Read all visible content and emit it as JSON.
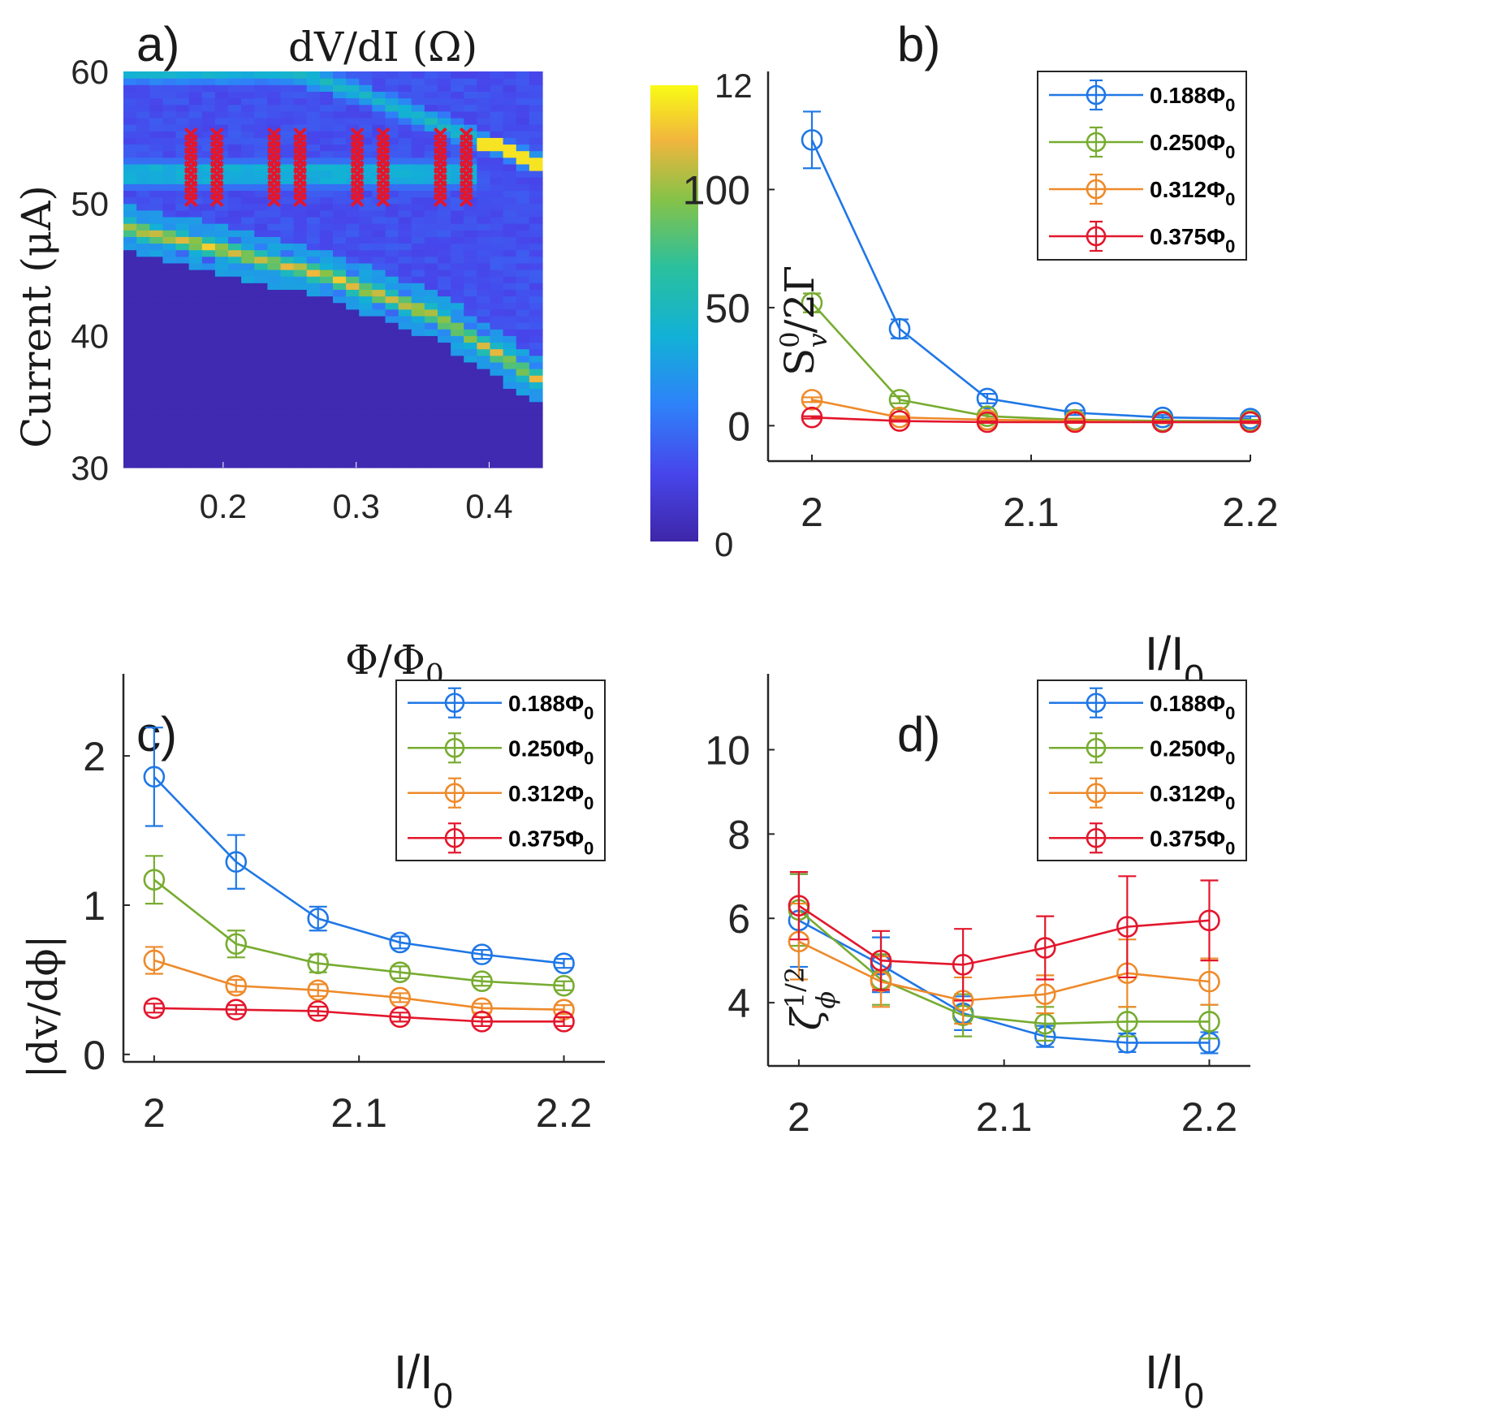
{
  "figure": {
    "panels": [
      "a)",
      "b)",
      "c)",
      "d)"
    ]
  },
  "colors": {
    "blue": "#1f77e6",
    "green": "#77ac30",
    "orange": "#ee8a2a",
    "red": "#e3162c",
    "cross": "#e3162c"
  },
  "chart_data": [
    {
      "id": "a",
      "type": "heatmap",
      "title": "dV/dI (Ω)",
      "xlabel": "Φ/Φ",
      "xlabel_sub": "0",
      "ylabel": "Current (μA)",
      "xlim": [
        0.125,
        0.44
      ],
      "ylim": [
        30,
        60
      ],
      "xticks": [
        "0.2",
        "0.3",
        "0.4"
      ],
      "xtick_values": [
        0.2,
        0.3,
        0.4
      ],
      "yticks": [
        "30",
        "40",
        "50",
        "60"
      ],
      "ytick_values": [
        30,
        40,
        50,
        60
      ],
      "colorbar": {
        "min": 0,
        "max": 12,
        "ticks": [
          "0",
          "12"
        ]
      },
      "features": [
        {
          "name": "lower branch",
          "points": [
            [
              0.125,
              48.2
            ],
            [
              0.2,
              46.5
            ],
            [
              0.28,
              44.5
            ],
            [
              0.36,
              41.5
            ],
            [
              0.44,
              36.5
            ]
          ],
          "peak": 10
        },
        {
          "name": "upper branch",
          "points": [
            [
              0.125,
              60
            ],
            [
              0.2,
              60
            ],
            [
              0.25,
              60
            ],
            [
              0.3,
              58.5
            ],
            [
              0.35,
              56.5
            ],
            [
              0.4,
              54.5
            ],
            [
              0.44,
              53
            ]
          ],
          "peak": 6
        },
        {
          "name": "horizontal band",
          "points": [
            [
              0.125,
              52.2
            ],
            [
              0.44,
              52.2
            ]
          ],
          "peak": 5
        }
      ],
      "markers": {
        "symbol": "x",
        "x": [
          0.1758,
          0.1953,
          0.2383,
          0.2578,
          0.3008,
          0.3203,
          0.3633,
          0.3828
        ],
        "y": [
          50.25,
          50.75,
          51.25,
          51.75,
          52.25,
          52.75,
          53.25,
          53.75,
          54.25,
          54.75,
          55.25
        ]
      }
    },
    {
      "id": "b",
      "type": "line",
      "xlabel": "I/I",
      "xlabel_sub": "0",
      "ylabel": "S",
      "ylabel_sup": "0",
      "ylabel_sub": "v",
      "ylabel_rest": "/2Γ",
      "xlim": [
        1.98,
        2.2
      ],
      "ylim": [
        -15,
        150
      ],
      "xticks": [
        "2",
        "2.1",
        "2.2"
      ],
      "xtick_values": [
        2,
        2.1,
        2.2
      ],
      "yticks": [
        "0",
        "50",
        "100"
      ],
      "ytick_values": [
        0,
        50,
        100
      ],
      "x": [
        2.0,
        2.04,
        2.08,
        2.12,
        2.16,
        2.2
      ],
      "series": [
        {
          "name": "0.188Φ",
          "sub": "0",
          "color": "blue",
          "values": [
            121,
            41,
            11.5,
            5.5,
            3.5,
            3
          ],
          "errors": [
            12,
            4,
            2,
            1,
            1,
            1
          ]
        },
        {
          "name": "0.250Φ",
          "sub": "0",
          "color": "green",
          "values": [
            52,
            11,
            4,
            2.5,
            2,
            2
          ],
          "errors": [
            4,
            1.5,
            1,
            0.5,
            0.5,
            0.5
          ]
        },
        {
          "name": "0.312Φ",
          "sub": "0",
          "color": "orange",
          "values": [
            11,
            3.5,
            2.5,
            2,
            1.5,
            1.5
          ],
          "errors": [
            1,
            0.5,
            0.5,
            0.5,
            0.5,
            0.5
          ]
        },
        {
          "name": "0.375Φ",
          "sub": "0",
          "color": "red",
          "values": [
            3.5,
            2,
            1.5,
            1.5,
            1.5,
            1.5
          ],
          "errors": [
            0.5,
            0.3,
            0.3,
            0.3,
            0.3,
            0.3
          ]
        }
      ]
    },
    {
      "id": "c",
      "type": "line",
      "xlabel": "I/I",
      "xlabel_sub": "0",
      "ylabel": "|dv/dϕ|",
      "xlim": [
        1.985,
        2.22
      ],
      "ylim": [
        -0.05,
        2.55
      ],
      "xticks": [
        "2",
        "2.1",
        "2.2"
      ],
      "xtick_values": [
        2,
        2.1,
        2.2
      ],
      "yticks": [
        "0",
        "1",
        "2"
      ],
      "ytick_values": [
        0,
        1,
        2
      ],
      "x": [
        2.0,
        2.04,
        2.08,
        2.12,
        2.16,
        2.2
      ],
      "series": [
        {
          "name": "0.188Φ",
          "sub": "0",
          "color": "blue",
          "values": [
            1.86,
            1.29,
            0.91,
            0.75,
            0.67,
            0.61
          ],
          "errors": [
            0.33,
            0.18,
            0.08,
            0.04,
            0.03,
            0.03
          ]
        },
        {
          "name": "0.250Φ",
          "sub": "0",
          "color": "green",
          "values": [
            1.17,
            0.74,
            0.61,
            0.55,
            0.49,
            0.46
          ],
          "errors": [
            0.16,
            0.09,
            0.06,
            0.04,
            0.03,
            0.03
          ]
        },
        {
          "name": "0.312Φ",
          "sub": "0",
          "color": "orange",
          "values": [
            0.63,
            0.46,
            0.43,
            0.38,
            0.31,
            0.3
          ],
          "errors": [
            0.09,
            0.04,
            0.04,
            0.03,
            0.03,
            0.03
          ]
        },
        {
          "name": "0.375Φ",
          "sub": "0",
          "color": "red",
          "values": [
            0.31,
            0.3,
            0.29,
            0.25,
            0.22,
            0.22
          ],
          "errors": [
            0.03,
            0.03,
            0.03,
            0.03,
            0.03,
            0.03
          ]
        }
      ]
    },
    {
      "id": "d",
      "type": "line",
      "xlabel": "I/I",
      "xlabel_sub": "0",
      "ylabel": "ζ",
      "ylabel_sup": "1/2",
      "ylabel_sub": "ϕ",
      "xlim": [
        1.985,
        2.22
      ],
      "ylim": [
        2.5,
        11.8
      ],
      "xticks": [
        "2",
        "2.1",
        "2.2"
      ],
      "xtick_values": [
        2,
        2.1,
        2.2
      ],
      "yticks": [
        "4",
        "6",
        "8",
        "10"
      ],
      "ytick_values": [
        4,
        6,
        8,
        10
      ],
      "x": [
        2.0,
        2.04,
        2.08,
        2.12,
        2.16,
        2.2
      ],
      "series": [
        {
          "name": "0.188Φ",
          "sub": "0",
          "color": "blue",
          "values": [
            5.95,
            4.9,
            3.75,
            3.2,
            3.05,
            3.05
          ],
          "errors": [
            1.1,
            0.65,
            0.4,
            0.25,
            0.22,
            0.25
          ]
        },
        {
          "name": "0.250Φ",
          "sub": "0",
          "color": "green",
          "values": [
            6.2,
            4.55,
            3.7,
            3.5,
            3.55,
            3.55
          ],
          "errors": [
            0.85,
            0.6,
            0.5,
            0.4,
            0.35,
            0.4
          ]
        },
        {
          "name": "0.312Φ",
          "sub": "0",
          "color": "orange",
          "values": [
            5.45,
            4.5,
            4.05,
            4.2,
            4.7,
            4.5
          ],
          "errors": [
            0.9,
            0.6,
            0.55,
            0.45,
            0.8,
            0.55
          ]
        },
        {
          "name": "0.375Φ",
          "sub": "0",
          "color": "red",
          "values": [
            6.3,
            5.0,
            4.9,
            5.3,
            5.8,
            5.95
          ],
          "errors": [
            0.8,
            0.7,
            0.85,
            0.75,
            1.2,
            0.95
          ]
        }
      ]
    }
  ]
}
